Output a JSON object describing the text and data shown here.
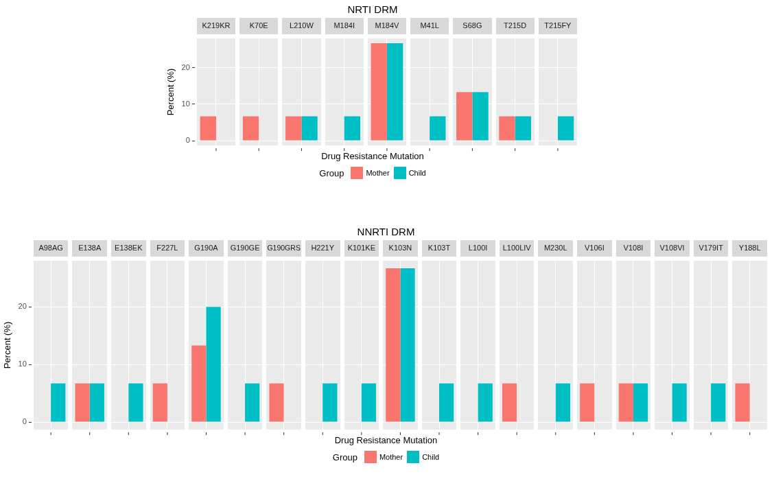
{
  "chart_data": [
    {
      "type": "bar",
      "title": "NRTI DRM",
      "xlabel": "Drug Resistance Mutation",
      "ylabel": "Percent (%)",
      "legend_title": "Group",
      "legend": "bottom",
      "grid": true,
      "tick_labels": "y",
      "categories": [
        "K219KR",
        "K70E",
        "L210W",
        "M184I",
        "M184V",
        "M41L",
        "S68G",
        "T215D",
        "T215FY"
      ],
      "ylim": [
        -1.3,
        28
      ],
      "yticks": [
        0,
        10,
        20
      ],
      "series": [
        {
          "name": "Mother",
          "color": "#f8766d",
          "values": [
            6.7,
            6.7,
            6.7,
            null,
            26.7,
            null,
            13.3,
            6.7,
            null
          ]
        },
        {
          "name": "Child",
          "color": "#00bfc4",
          "values": [
            null,
            null,
            6.7,
            6.7,
            26.7,
            6.7,
            13.3,
            6.7,
            6.7
          ]
        }
      ]
    },
    {
      "type": "bar",
      "title": "NNRTI DRM",
      "xlabel": "Drug Resistance Mutation",
      "ylabel": "Percent (%)",
      "legend_title": "Group",
      "legend": "bottom",
      "grid": true,
      "tick_labels": "y",
      "categories": [
        "A98AG",
        "E138A",
        "E138EK",
        "F227L",
        "G190A",
        "G190GE",
        "G190GRS",
        "H221Y",
        "K101KE",
        "K103N",
        "K103T",
        "L100I",
        "L100LIV",
        "M230L",
        "V106I",
        "V108I",
        "V108VI",
        "V179IT",
        "Y188L"
      ],
      "ylim": [
        -1.3,
        28
      ],
      "yticks": [
        0,
        10,
        20
      ],
      "series": [
        {
          "name": "Mother",
          "color": "#f8766d",
          "values": [
            null,
            6.7,
            null,
            6.7,
            13.3,
            null,
            6.7,
            null,
            null,
            26.7,
            null,
            null,
            6.7,
            null,
            6.7,
            6.7,
            null,
            null,
            6.7
          ]
        },
        {
          "name": "Child",
          "color": "#00bfc4",
          "values": [
            6.7,
            6.7,
            6.7,
            null,
            20,
            6.7,
            null,
            6.7,
            6.7,
            26.7,
            6.7,
            6.7,
            null,
            6.7,
            null,
            6.7,
            6.7,
            6.7,
            null
          ]
        }
      ]
    }
  ]
}
